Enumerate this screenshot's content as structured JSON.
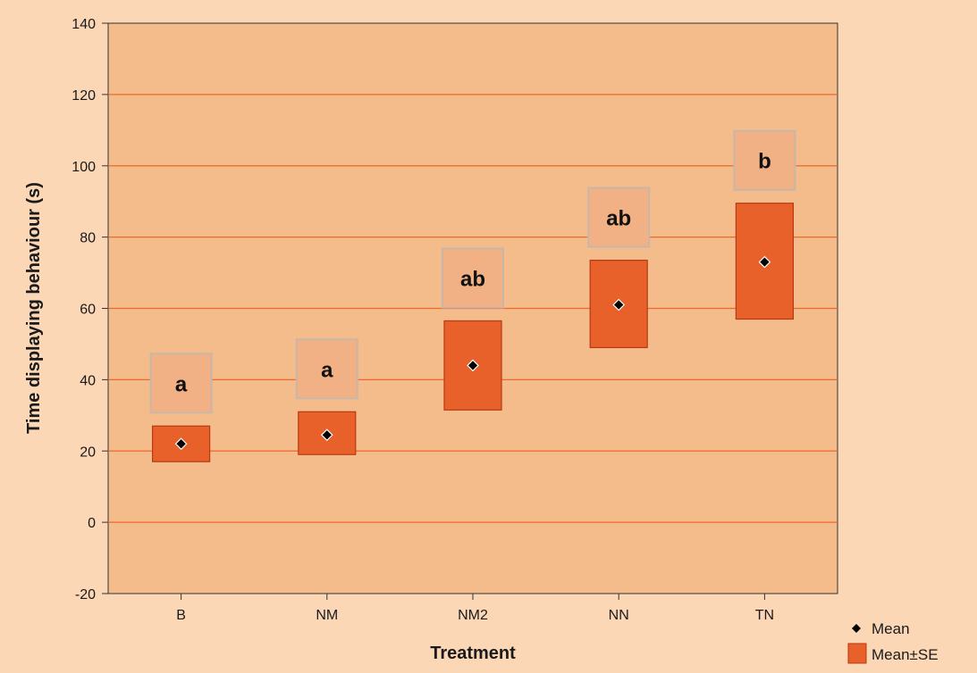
{
  "chart_data": {
    "type": "box",
    "xlabel": "Treatment",
    "ylabel": "Time displaying behaviour (s)",
    "ylim": [
      -20,
      140
    ],
    "yticks": [
      -20,
      0,
      20,
      40,
      60,
      80,
      100,
      120,
      140
    ],
    "grid": true,
    "categories": [
      "B",
      "NM",
      "NM2",
      "NN",
      "TN"
    ],
    "mean": [
      22,
      24.5,
      44,
      61,
      73
    ],
    "se_low": [
      17,
      19,
      31.5,
      49,
      57
    ],
    "se_high": [
      27,
      31,
      56.5,
      73.5,
      89.5
    ],
    "significance_labels": [
      "a",
      "a",
      "ab",
      "ab",
      "b"
    ],
    "legend": {
      "position": "bottom-right",
      "items": [
        {
          "label": "Mean",
          "marker": "diamond"
        },
        {
          "label": "Mean±SE",
          "marker": "box"
        }
      ]
    },
    "colors": {
      "page_background": "#fbd7b5",
      "plot_background": "#f4bb8b",
      "gridline": "#ee6a2a",
      "box_fill": "#e8612a",
      "box_stroke": "#b83a12",
      "label_box_fill": "#f2b184",
      "label_box_stroke": "#c8b7a8",
      "marker": "#000000"
    }
  }
}
